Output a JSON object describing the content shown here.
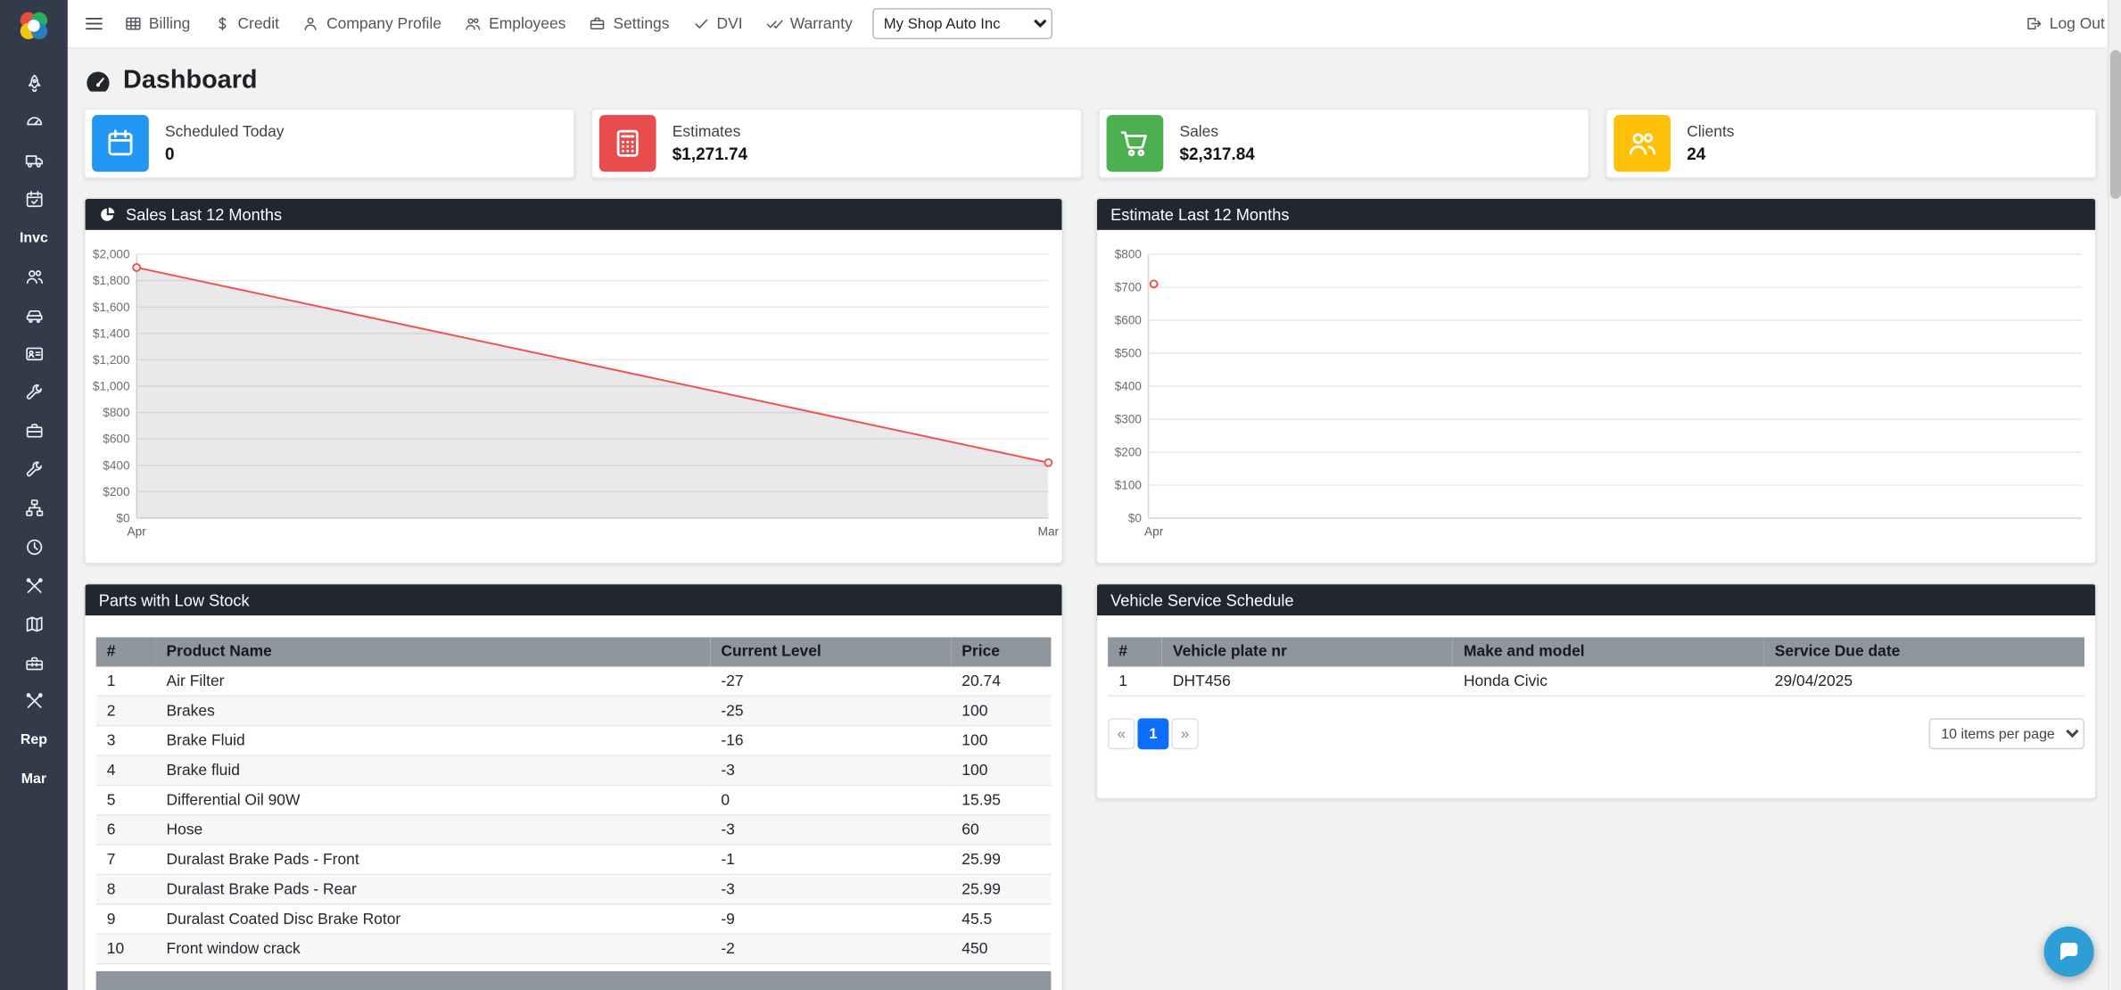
{
  "app": {
    "shop_select_value": "My Shop Auto Inc",
    "logout_label": "Log Out"
  },
  "topnav": {
    "items": [
      {
        "label": "Billing",
        "icon": "billing-table-icon"
      },
      {
        "label": "Credit",
        "icon": "dollar-icon"
      },
      {
        "label": "Company Profile",
        "icon": "user-icon"
      },
      {
        "label": "Employees",
        "icon": "users-icon"
      },
      {
        "label": "Settings",
        "icon": "briefcase-icon"
      },
      {
        "label": "DVI",
        "icon": "check-icon"
      },
      {
        "label": "Warranty",
        "icon": "double-check-icon"
      }
    ]
  },
  "sidebar": {
    "labels": {
      "invoices": "Invc",
      "reports": "Rep",
      "marketing": "Mar"
    }
  },
  "page": {
    "title": "Dashboard"
  },
  "stats": [
    {
      "label": "Scheduled Today",
      "value": "0",
      "color": "#2196f3",
      "icon": "calendar-icon"
    },
    {
      "label": "Estimates",
      "value": "$1,271.74",
      "color": "#e84c4c",
      "icon": "calculator-icon"
    },
    {
      "label": "Sales",
      "value": "$2,317.84",
      "color": "#4caf50",
      "icon": "cart-icon"
    },
    {
      "label": "Clients",
      "value": "24",
      "color": "#ffc107",
      "icon": "clients-icon"
    }
  ],
  "panels": {
    "sales_chart": {
      "title": "Sales Last 12 Months"
    },
    "estimate_chart": {
      "title": "Estimate Last 12 Months"
    },
    "parts": {
      "title": "Parts with Low Stock",
      "columns": [
        "#",
        "Product Name",
        "Current Level",
        "Price"
      ],
      "rows": [
        [
          "1",
          "Air Filter",
          "-27",
          "20.74"
        ],
        [
          "2",
          "Brakes",
          "-25",
          "100"
        ],
        [
          "3",
          "Brake Fluid",
          "-16",
          "100"
        ],
        [
          "4",
          "Brake fluid",
          "-3",
          "100"
        ],
        [
          "5",
          "Differential Oil 90W",
          "0",
          "15.95"
        ],
        [
          "6",
          "Hose",
          "-3",
          "60"
        ],
        [
          "7",
          "Duralast Brake Pads - Front",
          "-1",
          "25.99"
        ],
        [
          "8",
          "Duralast Brake Pads - Rear",
          "-3",
          "25.99"
        ],
        [
          "9",
          "Duralast Coated Disc Brake Rotor",
          "-9",
          "45.5"
        ],
        [
          "10",
          "Front window crack",
          "-2",
          "450"
        ]
      ]
    },
    "vehicles": {
      "title": "Vehicle Service Schedule",
      "columns": [
        "#",
        "Vehicle plate nr",
        "Make and model",
        "Service Due date"
      ],
      "rows": [
        [
          "1",
          "DHT456",
          "Honda Civic",
          "29/04/2025"
        ]
      ],
      "pagination": {
        "prev": "«",
        "page": "1",
        "next": "»",
        "per_page": "10 items per page"
      }
    }
  },
  "chart_data": [
    {
      "type": "line",
      "title": "Sales Last 12 Months",
      "x": [
        "Apr",
        "Mar"
      ],
      "series": [
        {
          "name": "Sales",
          "values": [
            1900,
            420
          ]
        }
      ],
      "ylim": [
        0,
        2000
      ],
      "ytick_step": 200,
      "ytick_labels": [
        "$0",
        "$200",
        "$400",
        "$600",
        "$800",
        "$1,000",
        "$1,200",
        "$1,400",
        "$1,600",
        "$1,800",
        "$2,000"
      ],
      "xlabel": "",
      "ylabel": "",
      "grid": true,
      "legend": false,
      "area_fill": true,
      "fill_color": "rgba(120,120,120,0.16)",
      "line_color": "#ef5350"
    },
    {
      "type": "scatter",
      "title": "Estimate Last 12 Months",
      "x": [
        "Apr"
      ],
      "series": [
        {
          "name": "Estimates",
          "values": [
            710
          ]
        }
      ],
      "ylim": [
        0,
        800
      ],
      "ytick_step": 100,
      "ytick_labels": [
        "$0",
        "$100",
        "$200",
        "$300",
        "$400",
        "$500",
        "$600",
        "$700",
        "$800"
      ],
      "xlabel": "",
      "ylabel": "",
      "grid": true,
      "legend": false,
      "area_fill": false,
      "line_color": "#ef5350"
    }
  ]
}
